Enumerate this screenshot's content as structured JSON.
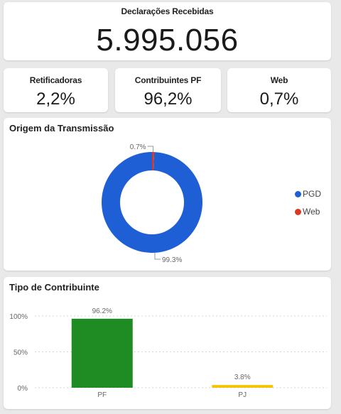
{
  "total_card": {
    "title": "Declarações Recebidas",
    "value": "5.995.056"
  },
  "kpis": [
    {
      "label": "Retificadoras",
      "value": "2,2%"
    },
    {
      "label": "Contribuintes PF",
      "value": "96,2%"
    },
    {
      "label": "Web",
      "value": "0,7%"
    }
  ],
  "chart_data": [
    {
      "type": "pie",
      "title": "Origem da Transmissão",
      "slices": [
        {
          "label": "PGD",
          "value": 99.3,
          "display": "99.3%",
          "color": "#1f5fd6"
        },
        {
          "label": "Web",
          "value": 0.7,
          "display": "0.7%",
          "color": "#d93a1f"
        }
      ],
      "legend_position": "right"
    },
    {
      "type": "bar",
      "title": "Tipo de Contribuinte",
      "categories": [
        "PF",
        "PJ"
      ],
      "values": [
        96.2,
        3.8
      ],
      "data_labels": [
        "96.2%",
        "3.8%"
      ],
      "colors": [
        "#1e8c22",
        "#f5c400"
      ],
      "ylim": [
        0,
        100
      ],
      "yticks": [
        "0%",
        "50%",
        "100%"
      ],
      "grid": true
    }
  ]
}
